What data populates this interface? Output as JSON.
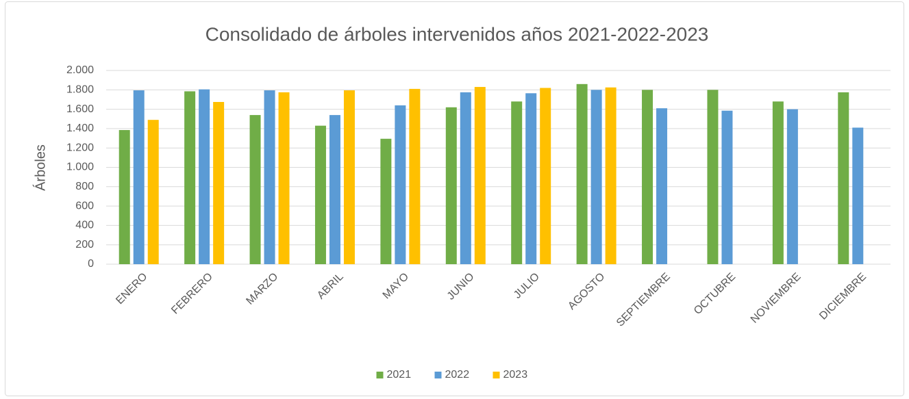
{
  "chart_data": {
    "type": "bar",
    "title": "Consolidado de árboles intervenidos años 2021-2022-2023",
    "y_label": "Árboles",
    "categories": [
      "ENERO",
      "FEBRERO",
      "MARZO",
      "ABRIL",
      "MAYO",
      "JUNIO",
      "JULIO",
      "AGOSTO",
      "SEPTIEMBRE",
      "OCTUBRE",
      "NOVIEMBRE",
      "DICIEMBRE"
    ],
    "series": [
      {
        "name": "2021",
        "color": "#70ad47",
        "values": [
          1385,
          1785,
          1540,
          1430,
          1295,
          1620,
          1680,
          1860,
          1800,
          1800,
          1680,
          1775
        ]
      },
      {
        "name": "2022",
        "color": "#5b9bd5",
        "values": [
          1795,
          1805,
          1795,
          1540,
          1640,
          1775,
          1765,
          1800,
          1610,
          1585,
          1600,
          1410
        ]
      },
      {
        "name": "2023",
        "color": "#ffc000",
        "values": [
          1490,
          1675,
          1775,
          1795,
          1810,
          1830,
          1820,
          1825,
          null,
          null,
          null,
          null
        ]
      }
    ],
    "ylim": [
      0,
      2000
    ],
    "yticks": [
      0,
      200,
      400,
      600,
      800,
      {
        "value": 1000,
        "label": "1.000"
      },
      {
        "value": 1200,
        "label": "1.200"
      },
      {
        "value": 1400,
        "label": "1.400"
      },
      {
        "value": 1600,
        "label": "1.600"
      },
      {
        "value": 1800,
        "label": "1.800"
      },
      {
        "value": 2000,
        "label": "2.000"
      }
    ],
    "grid": true,
    "legend": "bottom"
  }
}
